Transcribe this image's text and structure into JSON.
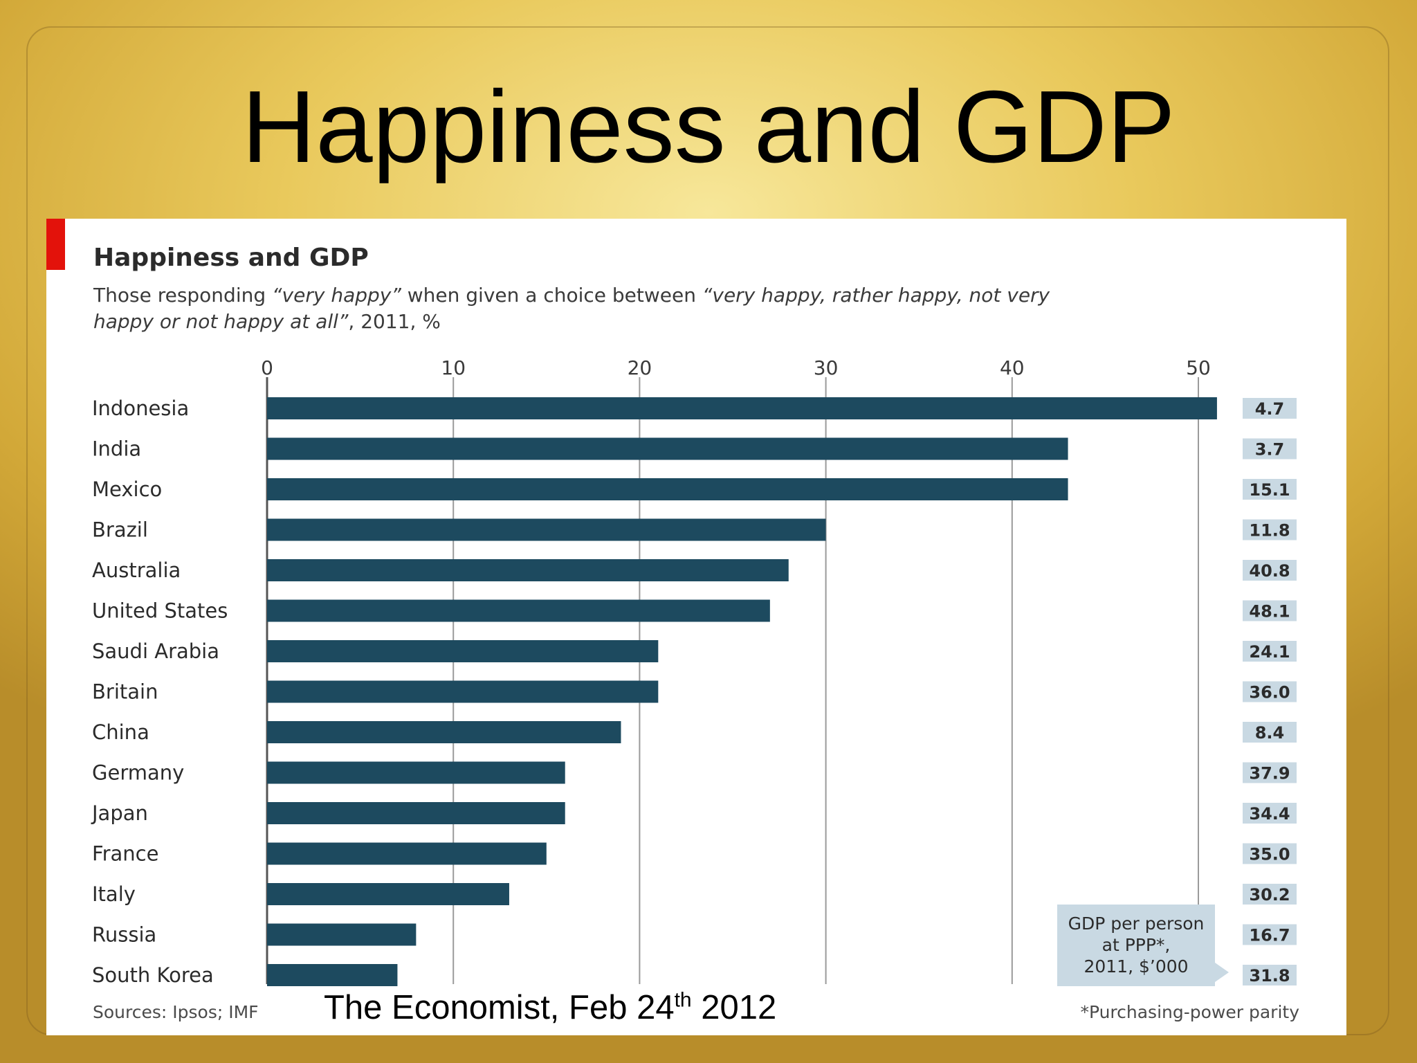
{
  "slide": {
    "title": "Happiness and GDP",
    "citation_main": "The Economist, Feb 24",
    "citation_sup": "th",
    "citation_year": " 2012"
  },
  "colors": {
    "bar": "#1d4a5f",
    "accent_red": "#e3120b",
    "value_box": "#c9d9e3",
    "gridline": "#9a9a9a"
  },
  "chart_data": {
    "type": "bar",
    "orientation": "horizontal",
    "title": "Happiness and GDP",
    "subtitle_part1": "Those responding ",
    "subtitle_italic1": "“very happy”",
    "subtitle_part2": " when given a choice between ",
    "subtitle_italic2": "“very happy, rather happy, not very happy or not happy at all”",
    "subtitle_part3": ", 2011, %",
    "xlim": [
      0,
      50
    ],
    "xticks": [
      0,
      10,
      20,
      30,
      40,
      50
    ],
    "categories": [
      "Indonesia",
      "India",
      "Mexico",
      "Brazil",
      "Australia",
      "United States",
      "Saudi Arabia",
      "Britain",
      "China",
      "Germany",
      "Japan",
      "France",
      "Italy",
      "Russia",
      "South Korea"
    ],
    "values": [
      51,
      43,
      43,
      30,
      28,
      27,
      21,
      21,
      19,
      16,
      16,
      15,
      13,
      8,
      7
    ],
    "gdp_per_person": [
      "4.7",
      "3.7",
      "15.1",
      "11.8",
      "40.8",
      "48.1",
      "24.1",
      "36.0",
      "8.4",
      "37.9",
      "34.4",
      "35.0",
      "30.2",
      "16.7",
      "31.8"
    ],
    "gdp_label_line1": "GDP per person",
    "gdp_label_line2": "at PPP*,",
    "gdp_label_line3": "2011, $’000",
    "sources": "Sources: Ipsos; IMF",
    "footnote": "*Purchasing-power parity",
    "grid": true
  }
}
